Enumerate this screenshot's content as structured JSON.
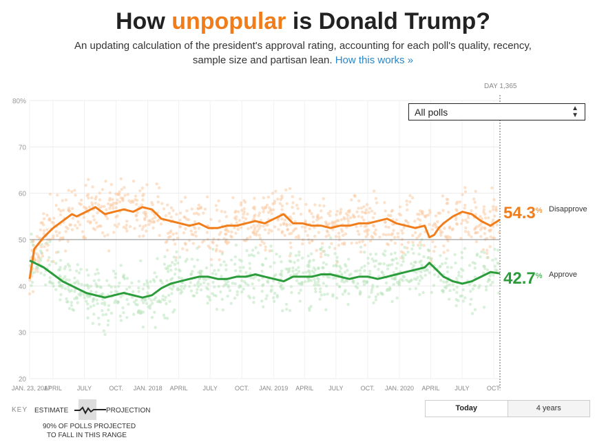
{
  "header": {
    "title_pre": "How ",
    "title_hl": "unpopular",
    "title_post": " is Donald Trump?",
    "subtitle": "An updating calculation of the president's approval rating, accounting for each poll's quality, recency, sample size and partisan lean.",
    "link": "How this works »"
  },
  "controls": {
    "poll_select": "All polls",
    "day_label": "DAY 1,365",
    "range_today": "Today",
    "range_4years": "4 years"
  },
  "current": {
    "disapprove_value": "54.3",
    "disapprove_label": "Disapprove",
    "approve_value": "42.7",
    "approve_label": "Approve",
    "pct": "%"
  },
  "key": {
    "label": "KEY",
    "estimate": "ESTIMATE",
    "projection": "PROJECTION",
    "band_note_1": "90% OF POLLS PROJECTED",
    "band_note_2": "TO FALL IN THIS RANGE"
  },
  "colors": {
    "disapprove": "#f17d1a",
    "approve": "#2a9d3a",
    "disapprove_dots": "#f9c8a0",
    "approve_dots": "#b9e3bc"
  },
  "chart_data": {
    "type": "line",
    "title": "How unpopular is Donald Trump?",
    "ylim": [
      20,
      80
    ],
    "y_ticks": [
      20,
      30,
      40,
      50,
      60,
      70,
      80
    ],
    "y_tick_labels": [
      "20",
      "30",
      "40",
      "50",
      "60",
      "70",
      "80%"
    ],
    "x_ticks": [
      {
        "label": "JAN. 23, 2017",
        "t": 0.0
      },
      {
        "label": "APRIL",
        "t": 0.0496
      },
      {
        "label": "JULY",
        "t": 0.1164
      },
      {
        "label": "OCT.",
        "t": 0.1839
      },
      {
        "label": "JAN. 2018",
        "t": 0.2513
      },
      {
        "label": "APRIL",
        "t": 0.3172
      },
      {
        "label": "JULY",
        "t": 0.3839
      },
      {
        "label": "OCT.",
        "t": 0.4513
      },
      {
        "label": "JAN. 2019",
        "t": 0.5187
      },
      {
        "label": "APRIL",
        "t": 0.5846
      },
      {
        "label": "JULY",
        "t": 0.6513
      },
      {
        "label": "OCT.",
        "t": 0.7188
      },
      {
        "label": "JAN. 2020",
        "t": 0.7862
      },
      {
        "label": "APRIL",
        "t": 0.8528
      },
      {
        "label": "JULY",
        "t": 0.9195
      },
      {
        "label": "OCT.",
        "t": 0.987
      }
    ],
    "reference_line": 50,
    "series": [
      {
        "name": "Disapprove",
        "x": [
          0,
          0.01,
          0.03,
          0.05,
          0.07,
          0.09,
          0.1,
          0.12,
          0.14,
          0.16,
          0.18,
          0.2,
          0.22,
          0.24,
          0.26,
          0.28,
          0.3,
          0.32,
          0.34,
          0.36,
          0.38,
          0.4,
          0.42,
          0.44,
          0.46,
          0.48,
          0.5,
          0.52,
          0.54,
          0.56,
          0.58,
          0.6,
          0.62,
          0.64,
          0.66,
          0.68,
          0.7,
          0.72,
          0.74,
          0.76,
          0.78,
          0.8,
          0.82,
          0.84,
          0.85,
          0.86,
          0.87,
          0.88,
          0.9,
          0.92,
          0.94,
          0.96,
          0.98,
          1.0
        ],
        "y": [
          41.5,
          48,
          50.5,
          52.5,
          54,
          55.5,
          55,
          56,
          57,
          55.5,
          56,
          56.5,
          56,
          57,
          56.5,
          54.5,
          54,
          53.5,
          53,
          53.5,
          52.5,
          52.5,
          53,
          53,
          53.5,
          54,
          53.5,
          54.5,
          55.5,
          53.5,
          53.5,
          53,
          53,
          52.5,
          53,
          53,
          53.5,
          53.5,
          54,
          54.5,
          53.5,
          53,
          52.5,
          53,
          50.5,
          51,
          52.5,
          53.5,
          55,
          56,
          55.5,
          54,
          53,
          54.3
        ]
      },
      {
        "name": "Approve",
        "x": [
          0,
          0.01,
          0.03,
          0.05,
          0.07,
          0.09,
          0.1,
          0.12,
          0.14,
          0.16,
          0.18,
          0.2,
          0.22,
          0.24,
          0.26,
          0.28,
          0.3,
          0.32,
          0.34,
          0.36,
          0.38,
          0.4,
          0.42,
          0.44,
          0.46,
          0.48,
          0.5,
          0.52,
          0.54,
          0.56,
          0.58,
          0.6,
          0.62,
          0.64,
          0.66,
          0.68,
          0.7,
          0.72,
          0.74,
          0.76,
          0.78,
          0.8,
          0.82,
          0.84,
          0.85,
          0.86,
          0.87,
          0.88,
          0.9,
          0.92,
          0.94,
          0.96,
          0.98,
          1.0
        ],
        "y": [
          45.5,
          45,
          44,
          42.5,
          41,
          40,
          39.5,
          38.5,
          38,
          37.5,
          38,
          38.5,
          38,
          37.5,
          38,
          39.5,
          40.5,
          41,
          41.5,
          42,
          42,
          41.5,
          41.5,
          42,
          42,
          42.5,
          42,
          41.5,
          41,
          42,
          42,
          42,
          42.5,
          42.5,
          42,
          41.5,
          42,
          42,
          41.5,
          42,
          42.5,
          43,
          43.5,
          44,
          45,
          44,
          43,
          42,
          41,
          40.5,
          41,
          42,
          43,
          42.7
        ]
      }
    ]
  }
}
